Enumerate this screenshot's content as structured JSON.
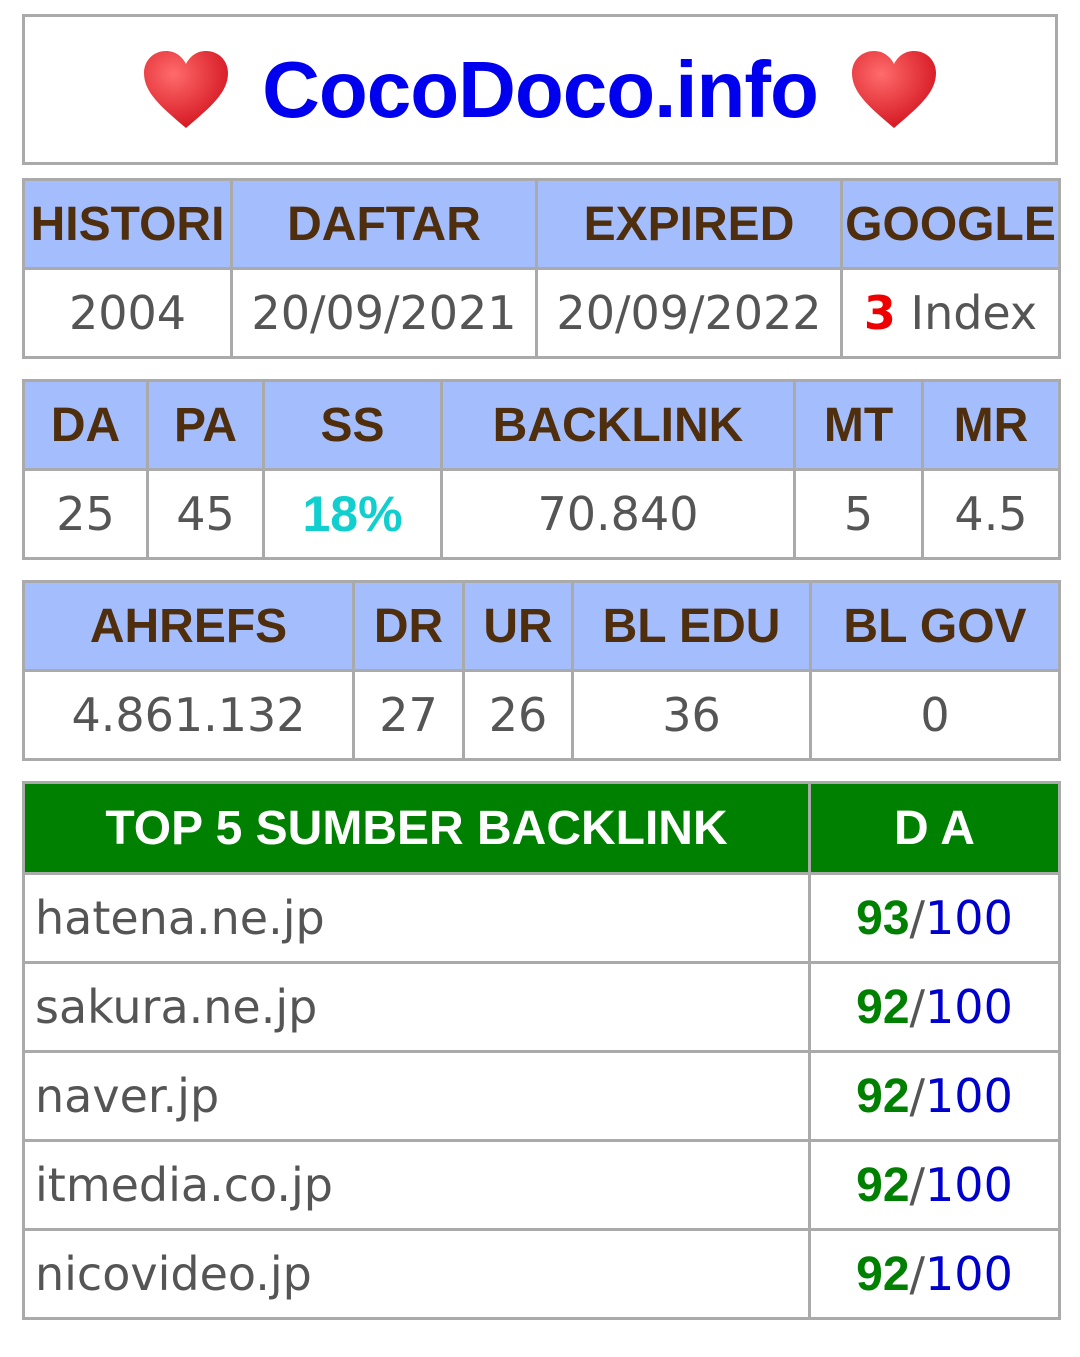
{
  "title": "CocoDoco.info",
  "colors": {
    "heart": "#e2202c",
    "title": "#0000ee",
    "header_bg": "#a4bdfc",
    "header_text": "#4e2e0c",
    "green_header": "#008000"
  },
  "table1": {
    "headers": [
      "HISTORI",
      "DAFTAR",
      "EXPIRED",
      "GOOGLE"
    ],
    "values": {
      "histori": "2004",
      "daftar": "20/09/2021",
      "expired": "20/09/2022",
      "google_count": "3",
      "google_label": "Index"
    }
  },
  "table2": {
    "headers": [
      "DA",
      "PA",
      "SS",
      "BACKLINK",
      "MT",
      "MR"
    ],
    "values": [
      "25",
      "45",
      "18%",
      "70.840",
      "5",
      "4.5"
    ]
  },
  "table3": {
    "headers": [
      "AHREFS",
      "DR",
      "UR",
      "BL EDU",
      "BL GOV"
    ],
    "values": [
      "4.861.132",
      "27",
      "26",
      "36",
      "0"
    ]
  },
  "backlinks": {
    "header_source": "TOP 5 SUMBER BACKLINK",
    "header_da": "D A",
    "rows": [
      {
        "site": "hatena.ne.jp",
        "da": "93",
        "max": "100"
      },
      {
        "site": "sakura.ne.jp",
        "da": "92",
        "max": "100"
      },
      {
        "site": "naver.jp",
        "da": "92",
        "max": "100"
      },
      {
        "site": "itmedia.co.jp",
        "da": "92",
        "max": "100"
      },
      {
        "site": "nicovideo.jp",
        "da": "92",
        "max": "100"
      }
    ]
  },
  "icons": {
    "heart": "heart-icon"
  },
  "separator": "/"
}
